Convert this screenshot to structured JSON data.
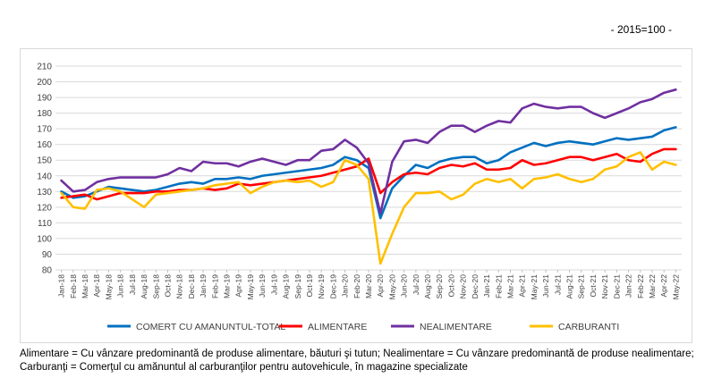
{
  "unit_note": "- 2015=100 -",
  "footnote": "Alimentare = Cu vânzare predominantă de produse alimentare, băuturi şi tutun; Nealimentare = Cu vânzare predominantă de produse nealimentare; Carburanţi = Comerţul cu amănuntul al carburanţilor pentru autovehicule, în magazine specializate",
  "chart_data": {
    "type": "line",
    "title": "",
    "xlabel": "",
    "ylabel": "",
    "ylim": [
      80,
      210
    ],
    "yticks": [
      80,
      90,
      100,
      110,
      120,
      130,
      140,
      150,
      160,
      170,
      180,
      190,
      200,
      210
    ],
    "grid": true,
    "legend_position": "bottom",
    "x": [
      "Jan-18",
      "Feb-18",
      "Mar-18",
      "Apr-18",
      "May-18",
      "Jun-18",
      "Jul-18",
      "Aug-18",
      "Sep-18",
      "Oct-18",
      "Nov-18",
      "Dec-18",
      "Jan-19",
      "Feb-19",
      "Mar-19",
      "Apr-19",
      "May-19",
      "Jun-19",
      "Jul-19",
      "Aug-19",
      "Sep-19",
      "Oct-19",
      "Nov-19",
      "Dec-19",
      "Jan-20",
      "Feb-20",
      "Mar-20",
      "Apr-20",
      "May-20",
      "Jun-20",
      "Jul-20",
      "Aug-20",
      "Sep-20",
      "Oct-20",
      "Nov-20",
      "Dec-20",
      "Jan-21",
      "Feb-21",
      "Mar-21",
      "Apr-21",
      "May-21",
      "Jun-21",
      "Jul-21",
      "Aug-21",
      "Sep-21",
      "Oct-21",
      "Nov-21",
      "Dec-21",
      "Jan-22",
      "Feb-22",
      "Mar-22",
      "Apr-22",
      "May-22"
    ],
    "series": [
      {
        "name": "COMERT CU AMANUNTUL-TOTAL",
        "color": "#0070C0",
        "values": [
          130,
          126,
          127,
          130,
          133,
          132,
          131,
          130,
          131,
          133,
          135,
          136,
          135,
          138,
          138,
          139,
          138,
          140,
          141,
          142,
          143,
          144,
          145,
          147,
          152,
          150,
          145,
          113,
          132,
          140,
          147,
          145,
          149,
          151,
          152,
          152,
          148,
          150,
          155,
          158,
          161,
          159,
          161,
          162,
          161,
          160,
          162,
          164,
          163,
          164,
          165,
          169,
          171
        ]
      },
      {
        "name": "ALIMENTARE",
        "color": "#FF0000",
        "values": [
          126,
          127,
          128,
          125,
          127,
          129,
          129,
          129,
          130,
          130,
          131,
          131,
          132,
          131,
          132,
          135,
          134,
          135,
          136,
          137,
          138,
          139,
          140,
          142,
          144,
          146,
          151,
          129,
          136,
          141,
          142,
          141,
          145,
          147,
          146,
          148,
          144,
          144,
          145,
          150,
          147,
          148,
          150,
          152,
          152,
          150,
          152,
          154,
          150,
          149,
          154,
          157,
          157
        ]
      },
      {
        "name": "NEALIMENTARE",
        "color": "#7030A0",
        "values": [
          137,
          130,
          131,
          136,
          138,
          139,
          139,
          139,
          139,
          141,
          145,
          143,
          149,
          148,
          148,
          146,
          149,
          151,
          149,
          147,
          150,
          150,
          156,
          157,
          163,
          158,
          148,
          116,
          149,
          162,
          163,
          161,
          168,
          172,
          172,
          168,
          172,
          175,
          174,
          183,
          186,
          184,
          183,
          184,
          184,
          180,
          177,
          180,
          183,
          187,
          189,
          193,
          195
        ]
      },
      {
        "name": "CARBURANTI",
        "color": "#FFC000",
        "values": [
          129,
          120,
          119,
          131,
          132,
          130,
          125,
          120,
          128,
          129,
          130,
          131,
          132,
          134,
          135,
          136,
          129,
          133,
          136,
          137,
          136,
          137,
          133,
          136,
          150,
          147,
          138,
          84,
          103,
          120,
          129,
          129,
          130,
          125,
          128,
          135,
          138,
          136,
          138,
          132,
          138,
          139,
          141,
          138,
          136,
          138,
          144,
          146,
          152,
          155,
          144,
          149,
          147
        ]
      }
    ]
  }
}
